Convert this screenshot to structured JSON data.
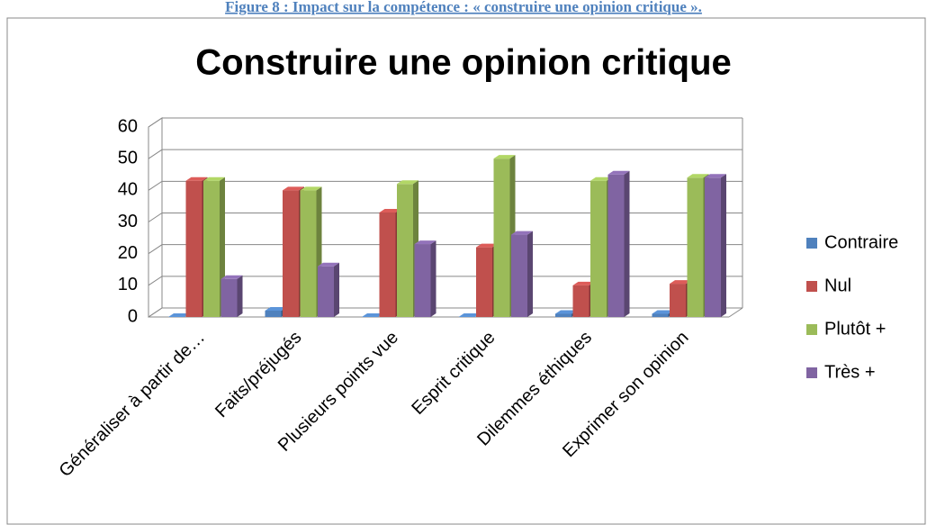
{
  "caption": "Figure 8 : Impact sur la compétence : « construire une opinion critique ».",
  "chart_data": {
    "type": "bar3d",
    "title": "Construire une opinion critique",
    "categories": [
      "Généraliser à partir de…",
      "Faits/préjugés",
      "Plusieurs points vue",
      "Esprit critique",
      "Dilemmes éthiques",
      "Exprimer son opinion"
    ],
    "series": [
      {
        "name": "Contraire",
        "color": "#4f81bd",
        "values": [
          0,
          2,
          0,
          0,
          1,
          1
        ]
      },
      {
        "name": "Nul",
        "color": "#c0504d",
        "values": [
          43,
          40,
          33,
          22,
          10,
          10.5
        ]
      },
      {
        "name": "Plutôt  +",
        "color": "#9bbb59",
        "values": [
          43,
          40,
          42,
          50,
          43,
          44
        ]
      },
      {
        "name": "Très +",
        "color": "#8064a2",
        "values": [
          12,
          16,
          23,
          26,
          45,
          44
        ]
      }
    ],
    "ylim": [
      0,
      60
    ],
    "yticks": [
      0,
      10,
      20,
      30,
      40,
      50,
      60
    ],
    "grid": true,
    "legend": "right"
  }
}
